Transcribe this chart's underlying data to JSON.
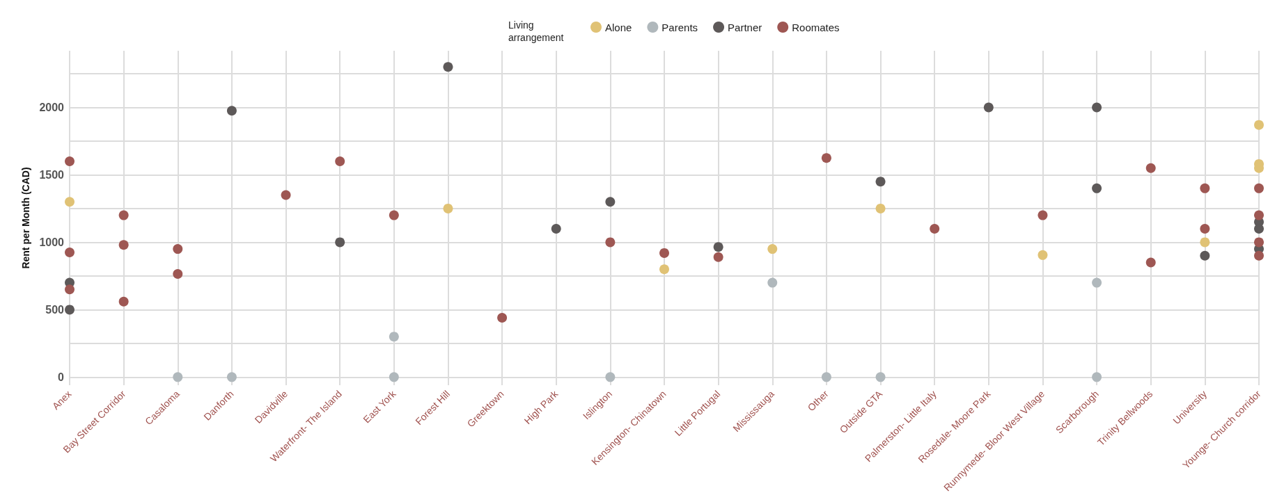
{
  "chart_data": {
    "type": "scatter",
    "ylabel": "Rent per Month (CAD)",
    "legend_title": "Living\narrangement",
    "legend": "top",
    "grid": true,
    "marker": "circle",
    "categories": [
      "Anex",
      "Bay Street\nCorridor",
      "Casaloma",
      "Danforth",
      "Davidville",
      "Waterfront-\nThe Island",
      "East York",
      "Forest Hill",
      "Greektown",
      "High Park",
      "Islington",
      "Kensington-\nChinatown",
      "Little Portugal",
      "Mississauga",
      "Other",
      "Outside GTA",
      "Palmerston-\nLittle Italy",
      "Rosedale-\nMoore Park",
      "Runnymede-\nBloor West Village",
      "Scarborough",
      "Trinity Bellwoods",
      "University",
      "Younge-\nChurch corridor"
    ],
    "ylim": [
      -60,
      2420
    ],
    "yticks": [
      0,
      {
        "value": 250,
        "label": null
      },
      500,
      {
        "value": 750,
        "label": null
      },
      1000,
      {
        "value": 1250,
        "label": null
      },
      1500,
      {
        "value": 1750,
        "label": null
      },
      2000,
      {
        "value": 2250,
        "label": null
      }
    ],
    "series": [
      {
        "name": "Alone",
        "color": "#e0c275",
        "x": [
          "Anex",
          "Forest Hill",
          "Kensington-\nChinatown",
          "Mississauga",
          "Outside GTA",
          "Runnymede-\nBloor West Village",
          "University",
          "Younge-\nChurch corridor",
          "Younge-\nChurch corridor",
          "Younge-\nChurch corridor"
        ],
        "values": [
          1300,
          1250,
          800,
          950,
          1250,
          905,
          1000,
          1870,
          1580,
          1550
        ]
      },
      {
        "name": "Parents",
        "color": "#b0b8bc",
        "x": [
          "Casaloma",
          "Danforth",
          "East York",
          "East York",
          "Islington",
          "Mississauga",
          "Other",
          "Outside GTA",
          "Scarborough",
          "Scarborough"
        ],
        "values": [
          0,
          0,
          300,
          0,
          0,
          700,
          0,
          0,
          700,
          0
        ]
      },
      {
        "name": "Partner",
        "color": "#5d5959",
        "x": [
          "Anex",
          "Anex",
          "Danforth",
          "Waterfront-\nThe Island",
          "Forest Hill",
          "High Park",
          "Islington",
          "Little Portugal",
          "Outside GTA",
          "Rosedale-\nMoore Park",
          "Scarborough",
          "Scarborough",
          "University",
          "Younge-\nChurch corridor",
          "Younge-\nChurch corridor",
          "Younge-\nChurch corridor"
        ],
        "values": [
          700,
          500,
          1975,
          1000,
          2300,
          1100,
          1300,
          965,
          1450,
          2000,
          2000,
          1400,
          900,
          1150,
          1100,
          950
        ]
      },
      {
        "name": "Roomates",
        "color": "#9e5753",
        "x": [
          "Anex",
          "Anex",
          "Anex",
          "Bay Street\nCorridor",
          "Bay Street\nCorridor",
          "Bay Street\nCorridor",
          "Casaloma",
          "Casaloma",
          "Davidville",
          "Waterfront-\nThe Island",
          "East York",
          "Greektown",
          "Islington",
          "Kensington-\nChinatown",
          "Little Portugal",
          "Other",
          "Palmerston-\nLittle Italy",
          "Runnymede-\nBloor West Village",
          "Trinity Bellwoods",
          "Trinity Bellwoods",
          "University",
          "University",
          "Younge-\nChurch corridor",
          "Younge-\nChurch corridor",
          "Younge-\nChurch corridor",
          "Younge-\nChurch corridor"
        ],
        "values": [
          1600,
          925,
          650,
          1200,
          980,
          560,
          950,
          765,
          1350,
          1600,
          1200,
          440,
          1000,
          920,
          890,
          1625,
          1100,
          1200,
          1550,
          850,
          1400,
          1100,
          1400,
          1200,
          1000,
          900
        ]
      }
    ]
  }
}
